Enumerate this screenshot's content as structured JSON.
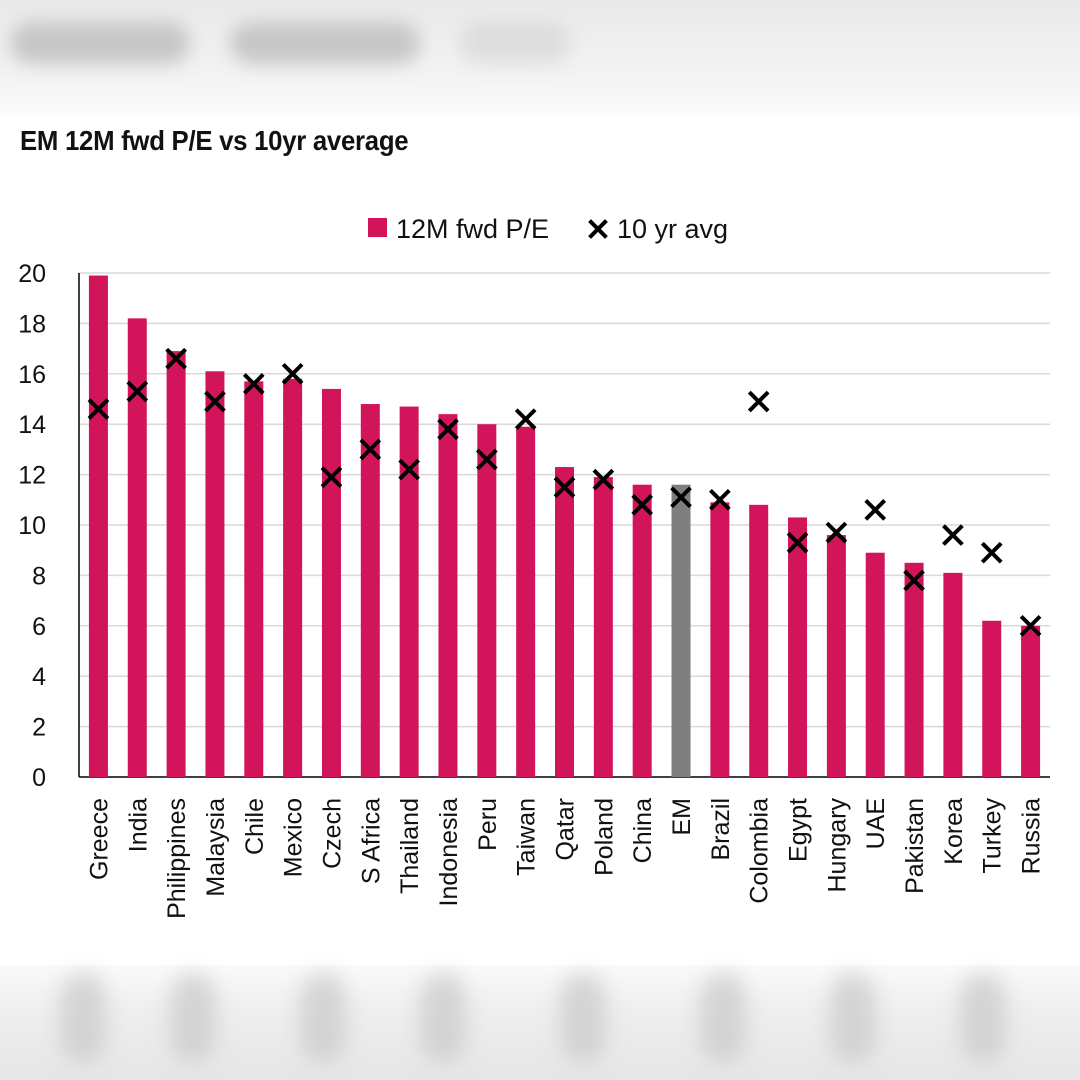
{
  "colors": {
    "bar": "#d2145a",
    "bar_highlight": "#7f7f7f",
    "marker": "#000000",
    "grid": "#d9d9d9",
    "axis": "#000000"
  },
  "chart_data": {
    "type": "bar",
    "title": "EM 12M fwd P/E vs 10yr average",
    "xlabel": "",
    "ylabel": "",
    "ylim": [
      0,
      20
    ],
    "yticks": [
      0,
      2,
      4,
      6,
      8,
      10,
      12,
      14,
      16,
      18,
      20
    ],
    "grid": true,
    "legend_position": "top-center",
    "highlight_category": "EM",
    "categories": [
      "Greece",
      "India",
      "Philippines",
      "Malaysia",
      "Chile",
      "Mexico",
      "Czech",
      "S Africa",
      "Thailand",
      "Indonesia",
      "Peru",
      "Taiwan",
      "Qatar",
      "Poland",
      "China",
      "EM",
      "Brazil",
      "Colombia",
      "Egypt",
      "Hungary",
      "UAE",
      "Pakistan",
      "Korea",
      "Turkey",
      "Russia"
    ],
    "series": [
      {
        "name": "12M fwd P/E",
        "kind": "bar",
        "values": [
          19.9,
          18.2,
          16.9,
          16.1,
          15.7,
          15.8,
          15.4,
          14.8,
          14.7,
          14.4,
          14.0,
          13.9,
          12.3,
          11.9,
          11.6,
          11.6,
          10.9,
          10.8,
          10.3,
          9.6,
          8.9,
          8.5,
          8.1,
          6.2,
          6.0
        ]
      },
      {
        "name": "10 yr avg",
        "kind": "marker",
        "values": [
          14.6,
          15.3,
          16.6,
          14.9,
          15.6,
          16.0,
          11.9,
          13.0,
          12.2,
          13.8,
          12.6,
          14.2,
          11.5,
          11.8,
          10.8,
          11.1,
          11.0,
          14.9,
          9.3,
          9.7,
          10.6,
          7.8,
          9.6,
          8.9,
          6.0
        ]
      }
    ]
  }
}
